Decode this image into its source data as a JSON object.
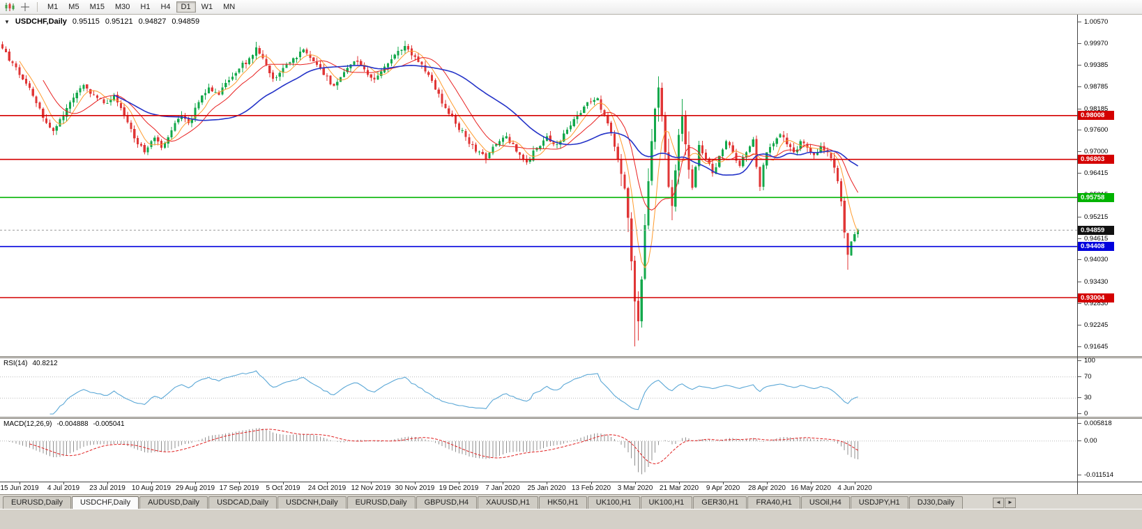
{
  "icons": {
    "dropdown": "▼",
    "scroll_left": "◄",
    "scroll_right": "►"
  },
  "toolbar": {
    "timeframes": [
      "M1",
      "M5",
      "M15",
      "M30",
      "H1",
      "H4",
      "D1",
      "W1",
      "MN"
    ],
    "active": "D1"
  },
  "chart": {
    "symbol_label": "USDCHF,Daily",
    "open": "0.95115",
    "high": "0.95121",
    "low": "0.94827",
    "close": "0.94859"
  },
  "price_axis": {
    "ticks": [
      "1.00570",
      "0.99970",
      "0.99385",
      "0.98785",
      "0.98185",
      "0.97600",
      "0.97000",
      "0.96415",
      "0.95815",
      "0.95215",
      "0.94615",
      "0.94030",
      "0.93430",
      "0.92830",
      "0.92245",
      "0.91645"
    ]
  },
  "levels": [
    {
      "price": "0.98008",
      "color": "#d40000"
    },
    {
      "price": "0.96803",
      "color": "#d40000"
    },
    {
      "price": "0.95758",
      "color": "#00b300"
    },
    {
      "price": "0.94408",
      "color": "#0000dd"
    },
    {
      "price": "0.93004",
      "color": "#d40000"
    }
  ],
  "current_price": {
    "value": "0.94859",
    "color": "#111111"
  },
  "date_axis": [
    "15 Jun 2019",
    "4 Jul 2019",
    "23 Jul 2019",
    "10 Aug 2019",
    "29 Aug 2019",
    "17 Sep 2019",
    "5 Oct 2019",
    "24 Oct 2019",
    "12 Nov 2019",
    "30 Nov 2019",
    "19 Dec 2019",
    "7 Jan 2020",
    "25 Jan 2020",
    "13 Feb 2020",
    "3 Mar 2020",
    "21 Mar 2020",
    "9 Apr 2020",
    "28 Apr 2020",
    "16 May 2020",
    "4 Jun 2020"
  ],
  "rsi_panel": {
    "label": "RSI(14)",
    "value": "40.8212",
    "axis": [
      "100",
      "70",
      "30",
      "0"
    ],
    "color": "#5aa7d6"
  },
  "macd_panel": {
    "label": "MACD(12,26,9)",
    "value_main": "-0.004888",
    "value_signal": "-0.005041",
    "axis": [
      "0.005818",
      "0.00",
      "-0.011514"
    ]
  },
  "tabs": {
    "items": [
      "EURUSD,Daily",
      "USDCHF,Daily",
      "AUDUSD,Daily",
      "USDCAD,Daily",
      "USDCNH,Daily",
      "EURUSD,Daily",
      "GBPUSD,H4",
      "XAUUSD,H1",
      "HK50,H1",
      "UK100,H1",
      "UK100,H1",
      "GER30,H1",
      "FRA40,H1",
      "USOil,H4",
      "USDJPY,H1",
      "DJ30,Daily"
    ],
    "active_index": 1
  },
  "chart_data": {
    "type": "candlestick",
    "symbol": "USDCHF",
    "timeframe": "Daily",
    "ohlc_display": {
      "open": 0.95115,
      "high": 0.95121,
      "low": 0.94827,
      "close": 0.94859
    },
    "n_candles": 254,
    "price_domain": {
      "top": 1.00781,
      "bottom": 0.91396
    },
    "y_ticks": [
      1.0057,
      0.9997,
      0.99385,
      0.98785,
      0.98185,
      0.976,
      0.97,
      0.96415,
      0.95815,
      0.95215,
      0.94615,
      0.9403,
      0.9343,
      0.9283,
      0.92245,
      0.91645
    ],
    "x_labels": [
      "15 Jun 2019",
      "4 Jul 2019",
      "23 Jul 2019",
      "10 Aug 2019",
      "29 Aug 2019",
      "17 Sep 2019",
      "5 Oct 2019",
      "24 Oct 2019",
      "12 Nov 2019",
      "30 Nov 2019",
      "19 Dec 2019",
      "7 Jan 2020",
      "25 Jan 2020",
      "13 Feb 2020",
      "3 Mar 2020",
      "21 Mar 2020",
      "9 Apr 2020",
      "28 Apr 2020",
      "16 May 2020",
      "4 Jun 2020"
    ],
    "x_label_start": 5,
    "x_label_step": 13,
    "last_close": 0.94859,
    "close_anchors": [
      [
        0,
        0.9985
      ],
      [
        3,
        0.9945
      ],
      [
        6,
        0.99
      ],
      [
        9,
        0.9855
      ],
      [
        12,
        0.9795
      ],
      [
        15,
        0.9758
      ],
      [
        18,
        0.98
      ],
      [
        21,
        0.985
      ],
      [
        24,
        0.9885
      ],
      [
        27,
        0.9858
      ],
      [
        30,
        0.9835
      ],
      [
        33,
        0.9856
      ],
      [
        36,
        0.98
      ],
      [
        39,
        0.9738
      ],
      [
        42,
        0.97
      ],
      [
        45,
        0.974
      ],
      [
        47,
        0.9712
      ],
      [
        50,
        0.976
      ],
      [
        53,
        0.9802
      ],
      [
        55,
        0.978
      ],
      [
        58,
        0.9838
      ],
      [
        61,
        0.9878
      ],
      [
        64,
        0.9858
      ],
      [
        67,
        0.9898
      ],
      [
        70,
        0.993
      ],
      [
        73,
        0.9958
      ],
      [
        75,
        0.9988
      ],
      [
        78,
        0.994
      ],
      [
        80,
        0.9902
      ],
      [
        83,
        0.9932
      ],
      [
        86,
        0.9958
      ],
      [
        89,
        0.9982
      ],
      [
        92,
        0.995
      ],
      [
        95,
        0.9912
      ],
      [
        98,
        0.9882
      ],
      [
        101,
        0.992
      ],
      [
        104,
        0.995
      ],
      [
        107,
        0.9928
      ],
      [
        110,
        0.99
      ],
      [
        113,
        0.9935
      ],
      [
        116,
        0.9968
      ],
      [
        119,
        0.9992
      ],
      [
        122,
        0.9962
      ],
      [
        125,
        0.9922
      ],
      [
        128,
        0.9872
      ],
      [
        131,
        0.9822
      ],
      [
        134,
        0.9778
      ],
      [
        137,
        0.9742
      ],
      [
        140,
        0.9702
      ],
      [
        143,
        0.9682
      ],
      [
        146,
        0.9722
      ],
      [
        149,
        0.9744
      ],
      [
        152,
        0.9702
      ],
      [
        155,
        0.9672
      ],
      [
        158,
        0.9712
      ],
      [
        161,
        0.9744
      ],
      [
        164,
        0.9722
      ],
      [
        167,
        0.9762
      ],
      [
        170,
        0.98
      ],
      [
        173,
        0.9838
      ],
      [
        176,
        0.9848
      ],
      [
        178,
        0.98
      ],
      [
        180,
        0.9752
      ],
      [
        182,
        0.9682
      ],
      [
        184,
        0.96
      ],
      [
        185,
        0.952
      ],
      [
        186,
        0.94
      ],
      [
        187,
        0.929
      ],
      [
        188,
        0.9235
      ],
      [
        189,
        0.935
      ],
      [
        190,
        0.95
      ],
      [
        191,
        0.962
      ],
      [
        192,
        0.973
      ],
      [
        193,
        0.982
      ],
      [
        194,
        0.9878
      ],
      [
        195,
        0.98
      ],
      [
        196,
        0.97
      ],
      [
        197,
        0.9605
      ],
      [
        198,
        0.9552
      ],
      [
        199,
        0.965
      ],
      [
        200,
        0.9748
      ],
      [
        201,
        0.9798
      ],
      [
        202,
        0.9722
      ],
      [
        203,
        0.9652
      ],
      [
        204,
        0.9602
      ],
      [
        205,
        0.966
      ],
      [
        206,
        0.972
      ],
      [
        208,
        0.9682
      ],
      [
        210,
        0.9642
      ],
      [
        212,
        0.969
      ],
      [
        214,
        0.973
      ],
      [
        216,
        0.97
      ],
      [
        218,
        0.9662
      ],
      [
        220,
        0.97
      ],
      [
        222,
        0.9735
      ],
      [
        223,
        0.966
      ],
      [
        224,
        0.9605
      ],
      [
        225,
        0.9665
      ],
      [
        226,
        0.97
      ],
      [
        228,
        0.9725
      ],
      [
        230,
        0.975
      ],
      [
        232,
        0.9722
      ],
      [
        234,
        0.97
      ],
      [
        236,
        0.973
      ],
      [
        238,
        0.9712
      ],
      [
        240,
        0.9692
      ],
      [
        242,
        0.9716
      ],
      [
        244,
        0.97
      ],
      [
        246,
        0.9658
      ],
      [
        247,
        0.962
      ],
      [
        248,
        0.9565
      ],
      [
        249,
        0.948
      ],
      [
        250,
        0.9418
      ],
      [
        251,
        0.9455
      ],
      [
        252,
        0.9475
      ],
      [
        253,
        0.94859
      ]
    ],
    "wick_lows": {
      "187": 0.9166,
      "188": 0.9183,
      "250": 0.9377
    },
    "wick_highs": {
      "0": 1.0004,
      "75": 1.0003,
      "119": 1.0006,
      "194": 0.9903,
      "201": 0.9846
    },
    "high_vol_zones": [
      [
        183,
        203,
        0.005
      ],
      [
        246,
        253,
        0.0022
      ]
    ],
    "seed": 20200613,
    "up_color": "#13a84b",
    "down_color": "#e03636",
    "mas": [
      {
        "period": 6,
        "color": "#ff9b2d",
        "width": 1
      },
      {
        "period": 13,
        "color": "#e82020",
        "width": 1
      },
      {
        "period": 34,
        "color": "#2433c8",
        "width": 1.6
      }
    ],
    "hlines": [
      {
        "price": 0.98008,
        "color": "#d40000"
      },
      {
        "price": 0.96803,
        "color": "#d40000"
      },
      {
        "price": 0.95758,
        "color": "#00b300"
      },
      {
        "price": 0.94408,
        "color": "#0000dd"
      },
      {
        "price": 0.93004,
        "color": "#d40000"
      }
    ],
    "bid_line": {
      "price": 0.94859,
      "color": "#999999"
    },
    "rsi": {
      "period": 14,
      "scale": [
        0,
        100
      ],
      "guides": [
        70,
        30
      ],
      "current": 40.8212
    },
    "macd": {
      "fast": 12,
      "slow": 26,
      "signal": 9,
      "domain": [
        -0.0125,
        0.0063
      ],
      "current": -0.004888,
      "current_signal": -0.005041
    }
  }
}
